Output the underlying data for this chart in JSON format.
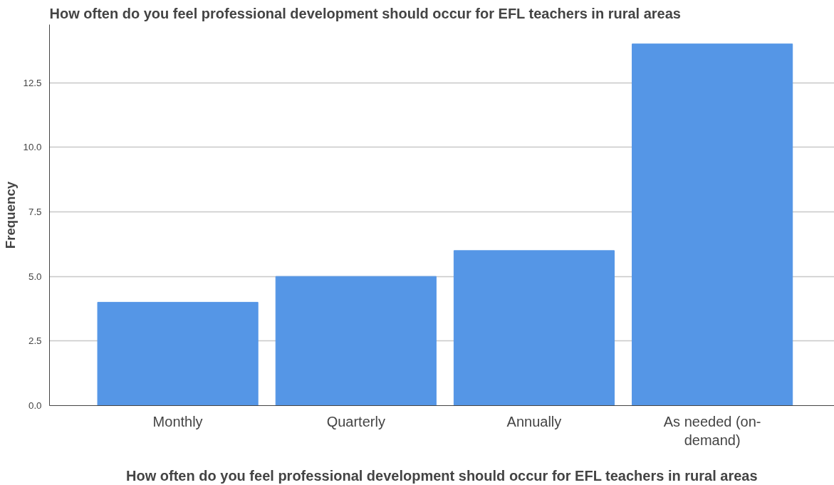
{
  "chart_data": {
    "type": "bar",
    "title": "How often do you feel professional development should occur for EFL teachers in rural areas",
    "xlabel": "How often do you feel professional development should occur for EFL teachers in rural areas",
    "ylabel": "Frequency",
    "categories": [
      "Monthly",
      "Quarterly",
      "Annually",
      "As needed (on-demand)"
    ],
    "values": [
      4,
      5,
      6,
      14
    ],
    "color": "#5596e6",
    "ylim": [
      0,
      14.75
    ],
    "yticks": [
      {
        "value": 0,
        "label": "0.0"
      },
      {
        "value": 2.5,
        "label": "2.5"
      },
      {
        "value": 5,
        "label": "5.0"
      },
      {
        "value": 7.5,
        "label": "7.5"
      },
      {
        "value": 10,
        "label": "10.0"
      },
      {
        "value": 12.5,
        "label": "12.5"
      }
    ],
    "grid": "y"
  }
}
